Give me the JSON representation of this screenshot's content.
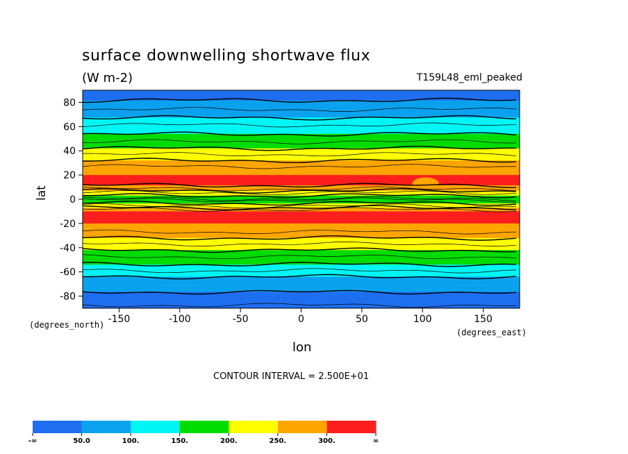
{
  "chart_data": {
    "type": "heatmap",
    "title": "surface downwelling shortwave flux",
    "units": "(W m-2)",
    "experiment": "T159L48_eml_peaked",
    "xlabel": "lon",
    "ylabel": "lat",
    "x_unit_label": "(degrees_east)",
    "y_unit_label": "(degrees_north)",
    "xlim": [
      -180,
      180
    ],
    "ylim": [
      -90,
      90
    ],
    "x_ticks": [
      -150,
      -100,
      -50,
      0,
      50,
      100,
      150
    ],
    "x_tick_labels": [
      "-150",
      "-100",
      "-50",
      "0",
      "50",
      "100",
      "150"
    ],
    "y_ticks": [
      80,
      60,
      40,
      20,
      0,
      -20,
      -40,
      -60,
      -80
    ],
    "y_tick_labels": [
      "80",
      "60",
      "40",
      "20",
      "0",
      "-20",
      "-40",
      "-60",
      "-80"
    ],
    "contour_interval_text": "CONTOUR INTERVAL = 2.500E+01",
    "contour_interval": 25,
    "colorbar": {
      "labels": [
        "-∞",
        "50.0",
        "100.",
        "150.",
        "200.",
        "250.",
        "300.",
        "∞"
      ],
      "colors": [
        "#1f6ef0",
        "#0ba2ee",
        "#00f5f5",
        "#00dc00",
        "#ffff00",
        "#ffa500",
        "#ff1e1e"
      ]
    },
    "zonal_mean_profile": {
      "lat": [
        90,
        85,
        80,
        75,
        70,
        65,
        60,
        55,
        50,
        45,
        40,
        35,
        30,
        25,
        20,
        15,
        10,
        5,
        0,
        -5,
        -10,
        -15,
        -20,
        -25,
        -30,
        -35,
        -40,
        -45,
        -50,
        -55,
        -60,
        -65,
        -70,
        -75,
        -80,
        -85,
        -90
      ],
      "value": [
        25,
        40,
        55,
        72,
        88,
        110,
        130,
        145,
        165,
        185,
        210,
        235,
        260,
        285,
        300,
        305,
        298,
        220,
        170,
        215,
        300,
        305,
        300,
        285,
        260,
        235,
        210,
        185,
        165,
        145,
        120,
        95,
        75,
        55,
        40,
        30,
        20
      ]
    },
    "features": [
      {
        "note": "orange (250-300) gap in the northern red band",
        "lon": [
          95,
          110
        ],
        "lat": [
          8,
          18
        ]
      }
    ],
    "grid": false,
    "legend": "bottom"
  }
}
